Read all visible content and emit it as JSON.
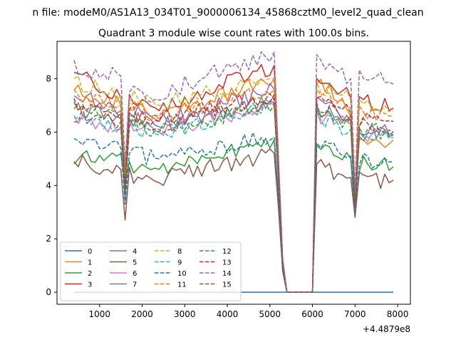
{
  "figure": {
    "suptitle": "n file: modeM0/AS1A13_034T01_9000006134_45868cztM0_level2_quad_clean",
    "title": "Quadrant 3 module wise count rates with 100.0s bins.",
    "x_offset_label": "+4.4879e8"
  },
  "chart_data": {
    "type": "line",
    "title": "Quadrant 3 module wise count rates with 100.0s bins.",
    "xlabel": "",
    "ylabel": "",
    "x_offset": 448790000,
    "xlim": [
      0,
      8300
    ],
    "ylim": [
      -0.45,
      9.4
    ],
    "x_ticks": [
      1000,
      2000,
      3000,
      4000,
      5000,
      6000,
      7000,
      8000
    ],
    "y_ticks": [
      0,
      2,
      4,
      6,
      8
    ],
    "x_tick_labels": [
      "1000",
      "2000",
      "3000",
      "4000",
      "5000",
      "6000",
      "7000",
      "8000"
    ],
    "y_tick_labels": [
      "0",
      "2",
      "4",
      "6",
      "8"
    ],
    "grid": false,
    "legend": {
      "placement": "lower-left",
      "columns": 4
    },
    "anchors": {
      "x": [
        400,
        1500,
        1600,
        1700,
        2400,
        2500,
        5100,
        5200,
        5300,
        5400,
        6000,
        6100,
        6200,
        6900,
        7000,
        7100,
        7900
      ],
      "x_series0": [
        400,
        7900
      ]
    },
    "series": [
      {
        "name": "0",
        "color": "#1f77b4",
        "dash": "solid",
        "flat": 0.0
      },
      {
        "name": "1",
        "color": "#ff7f0e",
        "dash": "solid",
        "anchors": [
          7.7,
          7.0,
          3.3,
          7.1,
          6.5,
          6.6,
          8.0,
          4.7,
          1.1,
          0,
          0,
          7.8,
          8.0,
          6.6,
          3.2,
          5.8,
          5.7
        ]
      },
      {
        "name": "2",
        "color": "#2ca02c",
        "dash": "solid",
        "anchors": [
          4.9,
          5.2,
          4.0,
          4.7,
          4.6,
          4.7,
          5.7,
          3.6,
          0.8,
          0,
          0,
          5.5,
          5.3,
          5.0,
          2.9,
          4.8,
          4.7
        ]
      },
      {
        "name": "3",
        "color": "#d62728",
        "dash": "solid",
        "anchors": [
          8.3,
          7.3,
          4.4,
          7.4,
          6.8,
          6.9,
          8.5,
          5.0,
          1.2,
          0,
          0,
          8.0,
          7.7,
          7.3,
          3.6,
          7.2,
          6.9
        ]
      },
      {
        "name": "4",
        "color": "#9467bd",
        "dash": "solid",
        "anchors": [
          7.4,
          6.8,
          4.1,
          6.9,
          6.4,
          6.4,
          7.6,
          4.5,
          1.1,
          0,
          0,
          7.3,
          7.0,
          6.6,
          3.1,
          6.1,
          6.0
        ]
      },
      {
        "name": "5",
        "color": "#8c564b",
        "dash": "solid",
        "anchors": [
          4.9,
          4.6,
          2.7,
          4.4,
          4.1,
          4.3,
          5.2,
          3.2,
          0.8,
          0,
          0,
          4.8,
          4.7,
          4.3,
          2.8,
          4.2,
          4.2
        ]
      },
      {
        "name": "6",
        "color": "#e377c2",
        "dash": "solid",
        "anchors": [
          6.6,
          6.2,
          3.6,
          6.4,
          6.0,
          6.1,
          7.0,
          4.2,
          1.0,
          0,
          0,
          6.8,
          6.6,
          6.3,
          3.0,
          5.9,
          5.9
        ]
      },
      {
        "name": "7",
        "color": "#7f7f7f",
        "dash": "solid",
        "anchors": [
          6.8,
          6.5,
          3.8,
          6.6,
          6.2,
          6.3,
          7.1,
          4.3,
          1.0,
          0,
          0,
          7.0,
          6.8,
          6.4,
          3.1,
          6.0,
          5.9
        ]
      },
      {
        "name": "8",
        "color": "#bcbd22",
        "dash": "dashed",
        "anchors": [
          7.9,
          7.4,
          4.2,
          7.3,
          7.0,
          7.1,
          8.0,
          4.9,
          1.2,
          0,
          0,
          7.9,
          7.6,
          7.2,
          3.4,
          7.0,
          6.8
        ]
      },
      {
        "name": "9",
        "color": "#17becf",
        "dash": "dashed",
        "anchors": [
          6.4,
          6.1,
          3.5,
          6.2,
          5.9,
          6.0,
          7.1,
          4.2,
          1.0,
          0,
          0,
          6.9,
          6.5,
          6.1,
          3.0,
          6.0,
          5.8
        ]
      },
      {
        "name": "10",
        "color": "#1f77b4",
        "dash": "dashed",
        "anchors": [
          5.6,
          5.4,
          3.3,
          5.2,
          5.0,
          5.1,
          5.8,
          3.6,
          0.9,
          0,
          0,
          5.6,
          5.4,
          5.1,
          2.9,
          5.0,
          4.9
        ]
      },
      {
        "name": "11",
        "color": "#ff7f0e",
        "dash": "dashed",
        "anchors": [
          7.4,
          7.0,
          4.0,
          7.0,
          6.6,
          6.7,
          7.6,
          4.6,
          1.1,
          0,
          0,
          7.6,
          7.3,
          6.9,
          3.3,
          6.8,
          6.6
        ]
      },
      {
        "name": "12",
        "color": "#2ca02c",
        "dash": "dashed",
        "anchors": [
          6.9,
          6.5,
          3.8,
          6.4,
          6.0,
          6.1,
          7.0,
          4.3,
          1.0,
          0,
          0,
          6.8,
          6.6,
          6.3,
          3.1,
          6.2,
          5.9
        ]
      },
      {
        "name": "13",
        "color": "#d62728",
        "dash": "dashed",
        "anchors": [
          7.0,
          6.7,
          3.9,
          6.8,
          6.4,
          6.5,
          7.4,
          4.4,
          1.1,
          0,
          0,
          7.3,
          7.1,
          6.7,
          3.2,
          6.5,
          6.4
        ]
      },
      {
        "name": "14",
        "color": "#9467bd",
        "dash": "dashed",
        "anchors": [
          8.4,
          8.1,
          4.8,
          7.6,
          7.2,
          7.5,
          9.0,
          5.2,
          1.3,
          0,
          0,
          8.9,
          8.4,
          8.0,
          3.8,
          8.2,
          7.8
        ]
      },
      {
        "name": "15",
        "color": "#8c564b",
        "dash": "dashed",
        "anchors": [
          6.7,
          6.4,
          3.7,
          6.5,
          6.1,
          6.2,
          7.2,
          4.3,
          1.0,
          0,
          0,
          7.1,
          6.8,
          6.5,
          3.0,
          6.3,
          6.0
        ]
      }
    ]
  }
}
